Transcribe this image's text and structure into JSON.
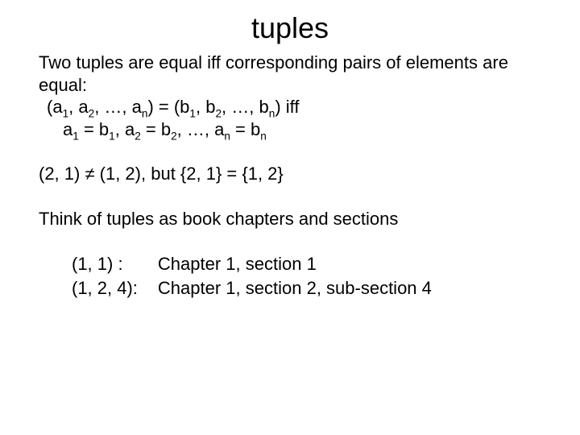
{
  "colors": {
    "background": "#ffffff",
    "text": "#000000"
  },
  "fonts": {
    "family": "Trebuchet MS, Lucida Sans, sans-serif",
    "title_size_pt": 36,
    "body_size_pt": 22,
    "sub_scale": 0.62
  },
  "title": "tuples",
  "para1": {
    "line1": "Two tuples are equal iff corresponding pairs of elements are equal:",
    "line2_parts": [
      " (a",
      "1",
      ", a",
      "2",
      ", …, a",
      "n",
      ") = (b",
      "1",
      ", b",
      "2",
      ", …, b",
      "n",
      ") iff"
    ],
    "line3_parts": [
      "a",
      "1",
      " = b",
      "1",
      ", a",
      "2",
      " = b",
      "2",
      ", …, a",
      "n",
      " = b",
      "n"
    ]
  },
  "para2": "(2, 1) ≠ (1, 2), but {2, 1} = {1, 2}",
  "para3": "Think of tuples as book chapters and sections",
  "examples": {
    "row1_l": "(1, 1) :",
    "row1_r": "Chapter 1, section 1",
    "row2_l": "(1, 2, 4):",
    "row2_r": "Chapter 1,  section 2, sub-section 4"
  }
}
